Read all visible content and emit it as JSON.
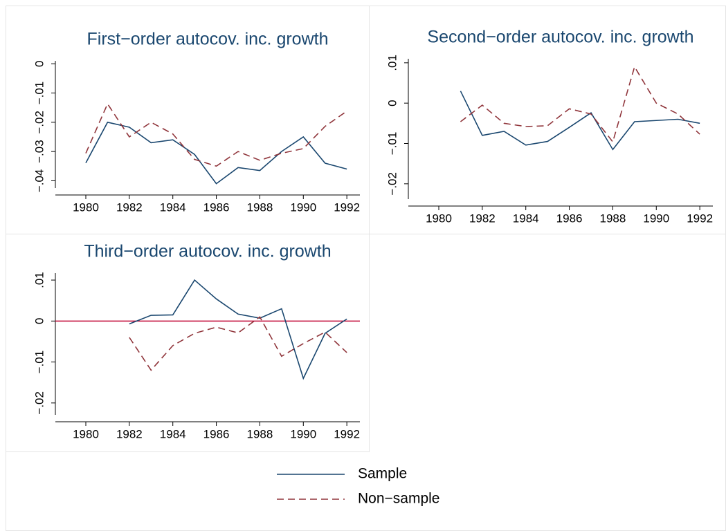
{
  "chart_data": [
    {
      "type": "line",
      "title": "First−order autocov. inc. growth",
      "x": [
        1980,
        1981,
        1982,
        1983,
        1984,
        1985,
        1986,
        1987,
        1988,
        1989,
        1990,
        1991,
        1992
      ],
      "series": [
        {
          "name": "Sample",
          "color": "#1a476f",
          "linestyle": "solid",
          "values": [
            -0.0339,
            -0.02,
            -0.0217,
            -0.027,
            -0.026,
            -0.031,
            -0.041,
            -0.0355,
            -0.0365,
            -0.03,
            -0.025,
            -0.034,
            -0.036
          ]
        },
        {
          "name": "Non−sample",
          "color": "#90353b",
          "linestyle": "dashed",
          "values": [
            -0.0306,
            -0.0137,
            -0.025,
            -0.02,
            -0.024,
            -0.0327,
            -0.035,
            -0.03,
            -0.033,
            -0.0306,
            -0.029,
            -0.0214,
            -0.0162
          ]
        }
      ],
      "xlim": [
        1978.6,
        1992.6
      ],
      "xticks": [
        1980,
        1982,
        1984,
        1986,
        1988,
        1990,
        1992
      ],
      "ylim": [
        -0.0425,
        0.001
      ],
      "yticks": [
        {
          "value": -0.04,
          "label": "−.04"
        },
        {
          "value": -0.03,
          "label": "−.03"
        },
        {
          "value": -0.02,
          "label": "−.02"
        },
        {
          "value": -0.01,
          "label": "−.01"
        },
        0
      ]
    },
    {
      "type": "line",
      "title": "Second−order autocov. inc. growth",
      "x": [
        1980,
        1981,
        1982,
        1983,
        1984,
        1985,
        1986,
        1987,
        1988,
        1989,
        1990,
        1991,
        1992
      ],
      "series": [
        {
          "color": "#1a476f",
          "linestyle": "solid",
          "values": [
            null,
            0.003,
            -0.008,
            -0.007,
            -0.0104,
            -0.0095,
            -0.006,
            -0.0024,
            -0.0115,
            -0.0046,
            -0.0043,
            -0.004,
            -0.005
          ]
        },
        {
          "color": "#90353b",
          "linestyle": "dashed",
          "values": [
            null,
            -0.0046,
            -0.0005,
            -0.005,
            -0.0058,
            -0.0056,
            -0.0014,
            -0.0027,
            -0.0096,
            0.009,
            0,
            -0.0027,
            -0.0077
          ]
        }
      ],
      "xlim": [
        1978.6,
        1992.6
      ],
      "xticks": [
        1980,
        1982,
        1984,
        1986,
        1988,
        1990,
        1992
      ],
      "ylim": [
        -0.0238,
        0.011
      ],
      "yticks": [
        {
          "value": -0.02,
          "label": "−.02"
        },
        {
          "value": -0.01,
          "label": "−.01"
        },
        0,
        {
          "value": 0.01,
          "label": ".01"
        }
      ]
    },
    {
      "type": "line",
      "title": "Third−order autocov. inc. growth",
      "x": [
        1980,
        1981,
        1982,
        1983,
        1984,
        1985,
        1986,
        1987,
        1988,
        1989,
        1990,
        1991,
        1992
      ],
      "series": [
        {
          "color": "#1a476f",
          "linestyle": "solid",
          "values": [
            null,
            null,
            -0.0007,
            0.0014,
            0.0015,
            0.01,
            0.0054,
            0.0017,
            0.0007,
            0.003,
            -0.014,
            -0.003,
            0.0005
          ]
        },
        {
          "color": "#90353b",
          "linestyle": "dashed",
          "values": [
            null,
            null,
            -0.004,
            -0.012,
            -0.006,
            -0.003,
            -0.0015,
            -0.0029,
            0.001,
            -0.0086,
            -0.0055,
            -0.0027,
            -0.0077
          ]
        }
      ],
      "xlim": [
        1978.6,
        1992.6
      ],
      "xticks": [
        1980,
        1982,
        1984,
        1986,
        1988,
        1990,
        1992
      ],
      "ylim": [
        -0.0229,
        0.0117
      ],
      "yticks": [
        {
          "value": -0.02,
          "label": "−.02"
        },
        {
          "value": -0.01,
          "label": "−.01"
        },
        0,
        {
          "value": 0.01,
          "label": ".01"
        }
      ],
      "hline": 0,
      "hline_color": "#c10534"
    }
  ]
}
